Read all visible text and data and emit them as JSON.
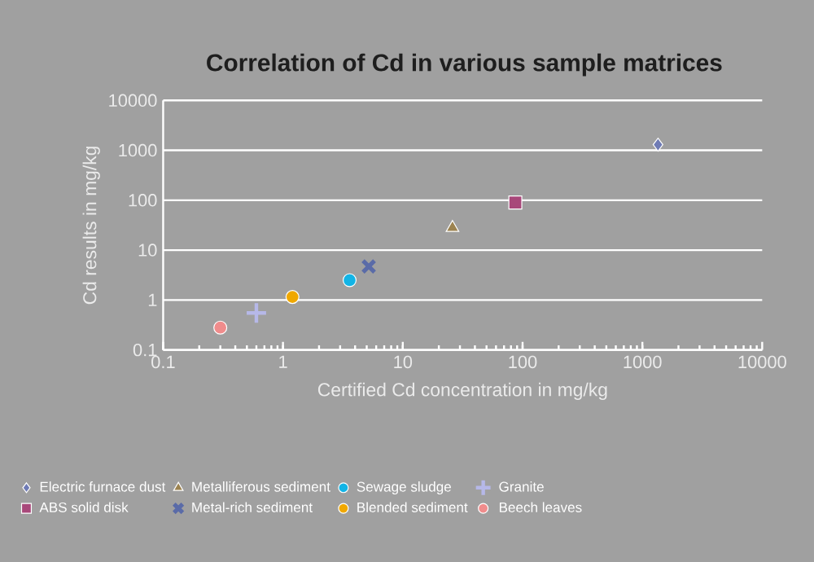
{
  "chart_data": {
    "type": "scatter",
    "title": "Correlation of Cd in various sample matrices",
    "xlabel": "Certified Cd concentration in mg/kg",
    "ylabel": "Cd results in mg/kg",
    "log": "xy",
    "xlim": [
      0.1,
      10000
    ],
    "ylim": [
      0.1,
      10000
    ],
    "xticks": [
      0.1,
      1,
      10,
      100,
      1000,
      10000
    ],
    "yticks": [
      0.1,
      1,
      10,
      100,
      1000,
      10000
    ],
    "grid": "y",
    "legend": "bottom",
    "series": [
      {
        "name": "Electric furnace dust",
        "color": "#6f7bb5",
        "marker": "diamond",
        "x": [
          1350
        ],
        "values": [
          1300
        ]
      },
      {
        "name": "Metalliferous sediment",
        "color": "#9c8350",
        "marker": "triangle",
        "x": [
          26
        ],
        "values": [
          28
        ]
      },
      {
        "name": "Sewage sludge",
        "color": "#12b4e6",
        "marker": "circle",
        "x": [
          3.6
        ],
        "values": [
          2.5
        ]
      },
      {
        "name": "Granite",
        "color": "#b6b8e8",
        "marker": "plus",
        "x": [
          0.6
        ],
        "values": [
          0.55
        ]
      },
      {
        "name": "ABS solid disk",
        "color": "#a8487a",
        "marker": "square",
        "x": [
          87
        ],
        "values": [
          90
        ]
      },
      {
        "name": "Metal-rich sediment",
        "color": "#5a6ba8",
        "marker": "cross",
        "x": [
          5.2
        ],
        "values": [
          4.7
        ]
      },
      {
        "name": "Blended sediment",
        "color": "#f0a800",
        "marker": "circle",
        "x": [
          1.2
        ],
        "values": [
          1.15
        ]
      },
      {
        "name": "Beech leaves",
        "color": "#f08c8c",
        "marker": "circle",
        "x": [
          0.3
        ],
        "values": [
          0.28
        ]
      }
    ]
  }
}
